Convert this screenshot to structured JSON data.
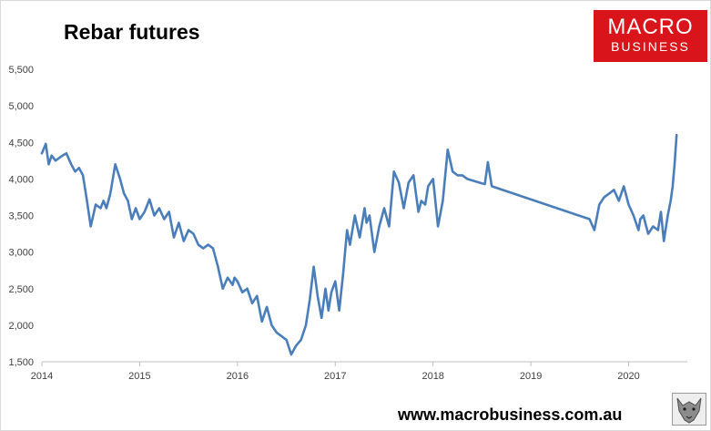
{
  "header": {
    "title": "Rebar futures"
  },
  "brand": {
    "logo_line1": "MACRO",
    "logo_line2": "BUSINESS",
    "website": "www.macrobusiness.com.au",
    "logo_color": "#d9141b"
  },
  "chart_data": {
    "type": "line",
    "title": "Rebar futures",
    "xlabel": "",
    "ylabel": "",
    "xlim": [
      2014.0,
      2020.6
    ],
    "ylim": [
      1500,
      5500
    ],
    "yticks": [
      1500,
      2000,
      2500,
      3000,
      3500,
      4000,
      4500,
      5000,
      5500
    ],
    "ytick_labels": [
      "1,500",
      "2,000",
      "2,500",
      "3,000",
      "3,500",
      "4,000",
      "4,500",
      "5,000",
      "5,500"
    ],
    "xticks": [
      2014,
      2015,
      2016,
      2017,
      2018,
      2019,
      2020
    ],
    "xtick_labels": [
      "2014",
      "2015",
      "2016",
      "2017",
      "2018",
      "2019",
      "2020"
    ],
    "grid": false,
    "legend": "none",
    "line_color": "#4a7ebb",
    "series": [
      {
        "x": [
          2014.0,
          2014.04,
          2014.07,
          2014.1,
          2014.14,
          2014.2,
          2014.25,
          2014.3,
          2014.34,
          2014.38,
          2014.42,
          2014.45,
          2014.5,
          2014.55,
          2014.6,
          2014.63,
          2014.66,
          2014.7,
          2014.75,
          2014.8,
          2014.84,
          2014.88,
          2014.92,
          2014.96,
          2015.0,
          2015.05,
          2015.1,
          2015.15,
          2015.2,
          2015.25,
          2015.3,
          2015.35,
          2015.4,
          2015.45,
          2015.5,
          2015.55,
          2015.6,
          2015.65,
          2015.7,
          2015.75,
          2015.8,
          2015.85,
          2015.9,
          2015.95,
          2015.97,
          2016.0,
          2016.05,
          2016.1,
          2016.15,
          2016.2,
          2016.25,
          2016.3,
          2016.35,
          2016.4,
          2016.45,
          2016.5,
          2016.55,
          2016.6,
          2016.65,
          2016.7,
          2016.74,
          2016.78,
          2016.82,
          2016.86,
          2016.9,
          2016.93,
          2016.96,
          2017.0,
          2017.04,
          2017.08,
          2017.12,
          2017.15,
          2017.2,
          2017.25,
          2017.3,
          2017.32,
          2017.35,
          2017.4,
          2017.45,
          2017.5,
          2017.55,
          2017.6,
          2017.65,
          2017.7,
          2017.75,
          2017.8,
          2017.85,
          2017.88,
          2017.92,
          2017.95,
          2018.0,
          2018.05,
          2018.1,
          2018.15,
          2018.2,
          2018.25,
          2018.3,
          2018.35,
          2018.4,
          2018.45,
          2018.5,
          2018.53,
          2018.56,
          2018.6,
          2019.6,
          2019.65,
          2019.7,
          2019.75,
          2019.8,
          2019.85,
          2019.9,
          2019.95,
          2020.0,
          2020.05,
          2020.1,
          2020.12,
          2020.15,
          2020.2,
          2020.25,
          2020.3,
          2020.33,
          2020.36,
          2020.4,
          2020.43,
          2020.45,
          2020.47,
          2020.49
        ],
        "y": [
          4350,
          4480,
          4200,
          4320,
          4250,
          4310,
          4350,
          4200,
          4100,
          4150,
          4050,
          3800,
          3350,
          3650,
          3600,
          3700,
          3600,
          3800,
          4200,
          4000,
          3800,
          3700,
          3450,
          3600,
          3450,
          3550,
          3720,
          3500,
          3600,
          3450,
          3550,
          3200,
          3400,
          3150,
          3300,
          3250,
          3100,
          3050,
          3100,
          3050,
          2800,
          2500,
          2650,
          2550,
          2650,
          2600,
          2450,
          2500,
          2300,
          2400,
          2050,
          2250,
          2000,
          1900,
          1850,
          1800,
          1600,
          1720,
          1800,
          2000,
          2350,
          2800,
          2400,
          2100,
          2500,
          2200,
          2450,
          2600,
          2200,
          2700,
          3300,
          3100,
          3500,
          3200,
          3600,
          3400,
          3500,
          3000,
          3350,
          3600,
          3350,
          4100,
          3950,
          3600,
          3950,
          4050,
          3550,
          3700,
          3650,
          3900,
          4000,
          3350,
          3700,
          4400,
          4100,
          4050,
          4050,
          4000,
          3980,
          3960,
          3940,
          3930,
          4230,
          3900,
          3450,
          3300,
          3650,
          3750,
          3800,
          3850,
          3700,
          3900,
          3650,
          3500,
          3300,
          3450,
          3500,
          3250,
          3350,
          3300,
          3550,
          3150,
          3500,
          3700,
          3900,
          4200,
          4600
        ]
      }
    ]
  }
}
